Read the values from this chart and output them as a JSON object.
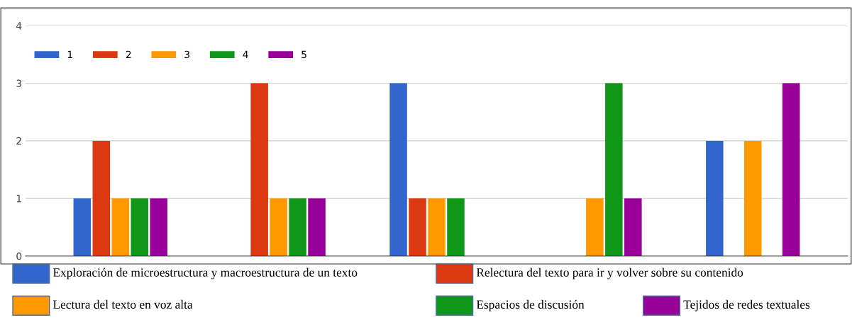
{
  "chart_data": {
    "type": "bar",
    "categories": [
      null,
      null,
      null,
      null,
      null
    ],
    "series": [
      {
        "name": "1",
        "color": "#3366cc",
        "values": [
          1,
          0,
          3,
          0,
          2
        ]
      },
      {
        "name": "2",
        "color": "#dc3912",
        "values": [
          2,
          3,
          1,
          0,
          0
        ]
      },
      {
        "name": "3",
        "color": "#ff9900",
        "values": [
          1,
          1,
          1,
          1,
          2
        ]
      },
      {
        "name": "4",
        "color": "#109618",
        "values": [
          1,
          1,
          1,
          3,
          0
        ]
      },
      {
        "name": "5",
        "color": "#990099",
        "values": [
          1,
          1,
          0,
          1,
          3
        ]
      }
    ],
    "ylim": [
      0,
      4
    ],
    "yticks": [
      0,
      1,
      2,
      3,
      4
    ],
    "grid": "y",
    "legend": "top left",
    "annotations": [
      "Exploración de microestructura y macroestructura de un texto",
      "Relectura del texto para ir y volver sobre su contenido",
      "Lectura del texto en voz alta",
      "Espacios de discusión",
      "Tejidos de redes textuales"
    ]
  }
}
